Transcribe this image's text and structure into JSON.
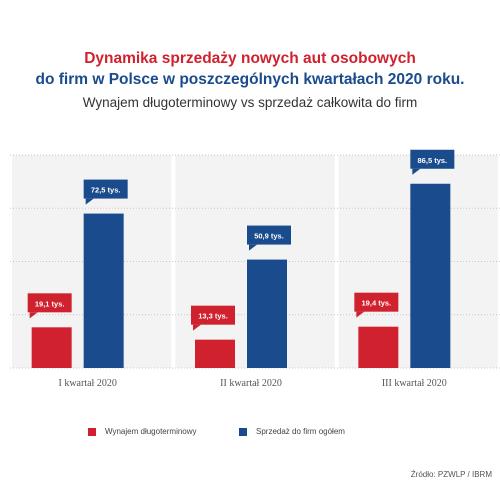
{
  "header": {
    "title_line1": "Dynamika sprzedaży nowych aut osobowych",
    "title_line2": "do firm w Polsce w poszczególnych kwartałach 2020 roku.",
    "subtitle": "Wynajem długoterminowy vs sprzedaż całkowita do firm"
  },
  "colors": {
    "red": "#d0222e",
    "blue": "#1a4b8c"
  },
  "chart_data": {
    "type": "bar",
    "categories": [
      "I kwartał 2020",
      "II kwartał 2020",
      "III kwartał 2020"
    ],
    "series": [
      {
        "name": "Wynajem długoterminowy",
        "color": "#d0222e",
        "values": [
          19.1,
          13.3,
          19.4
        ],
        "labels": [
          "19,1 tys.",
          "13,3 tys.",
          "19,4 tys."
        ]
      },
      {
        "name": "Sprzedaż do firm ogółem",
        "color": "#1a4b8c",
        "values": [
          72.5,
          50.9,
          86.5
        ],
        "labels": [
          "72,5 tys.",
          "50,9 tys.",
          "86,5 tys."
        ]
      }
    ],
    "ylim": [
      0,
      100
    ],
    "grid": true,
    "legend_position": "bottom-left"
  },
  "source": "Źródło: PZWLP / IBRM"
}
